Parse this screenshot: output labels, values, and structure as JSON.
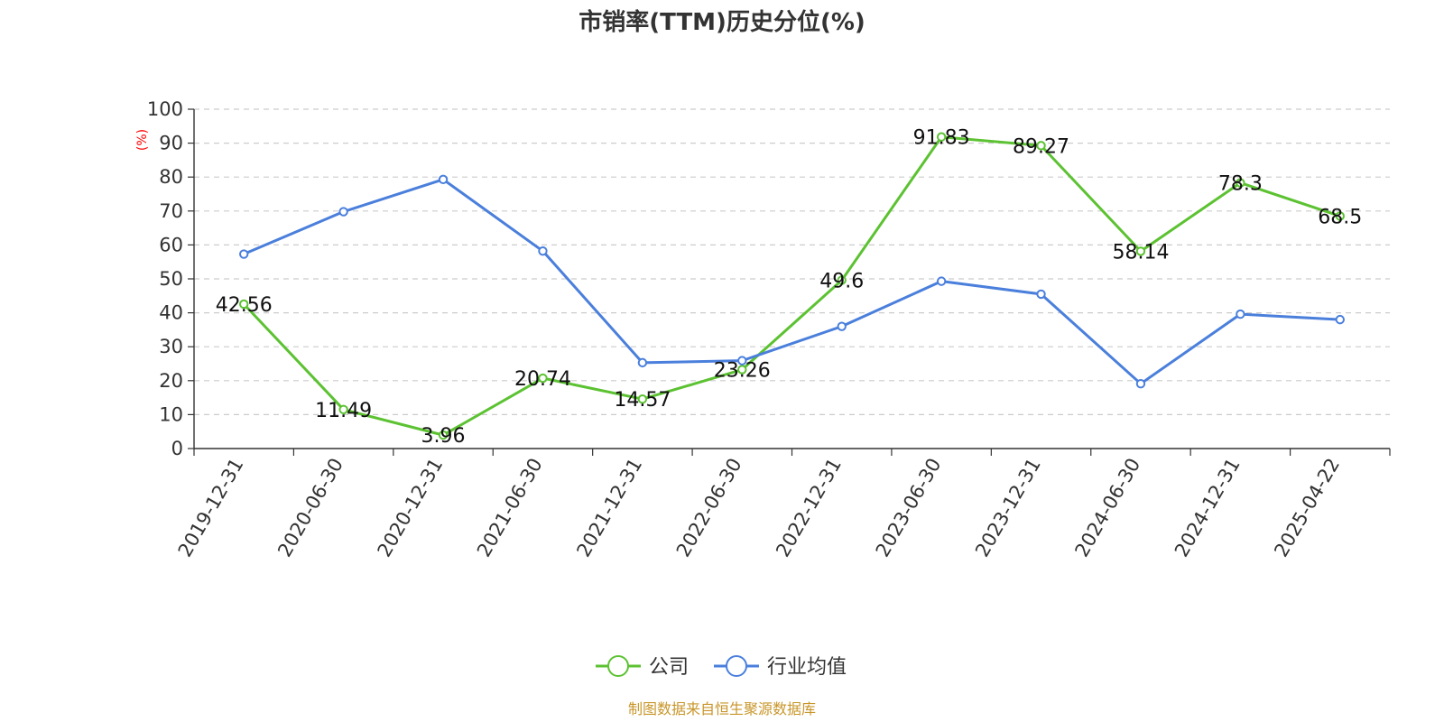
{
  "chart_data": {
    "type": "line",
    "title": "市销率(TTM)历史分位(%)",
    "ylabel": "(%)",
    "xlabel": "",
    "ylim": [
      0,
      100
    ],
    "yticks": [
      0,
      10,
      20,
      30,
      40,
      50,
      60,
      70,
      80,
      90,
      100
    ],
    "grid": true,
    "legend_position": "bottom-center",
    "categories": [
      "2019-12-31",
      "2020-06-30",
      "2020-12-31",
      "2021-06-30",
      "2021-12-31",
      "2022-06-30",
      "2022-12-31",
      "2023-06-30",
      "2023-12-31",
      "2024-06-30",
      "2024-12-31",
      "2025-04-22"
    ],
    "series": [
      {
        "name": "公司",
        "color": "#5cc232",
        "values": [
          42.56,
          11.49,
          3.96,
          20.74,
          14.57,
          23.26,
          49.6,
          91.83,
          89.27,
          58.14,
          78.3,
          68.5
        ],
        "labels": [
          "42.56",
          "11.49",
          "3.96",
          "20.74",
          "14.57",
          "23.26",
          "49.6",
          "91.83",
          "89.27",
          "58.14",
          "78.3",
          "68.5"
        ]
      },
      {
        "name": "行业均值",
        "color": "#4a7fdc",
        "values": [
          57.3,
          69.8,
          79.3,
          58.2,
          25.3,
          25.9,
          36.0,
          49.3,
          45.5,
          19.1,
          39.6,
          38.0
        ]
      }
    ]
  },
  "source_text": "制图数据来自恒生聚源数据库",
  "colors": {
    "ylabel": "#ff0000",
    "source": "#c8962a",
    "grid": "#cccccc",
    "axis": "#333333"
  }
}
